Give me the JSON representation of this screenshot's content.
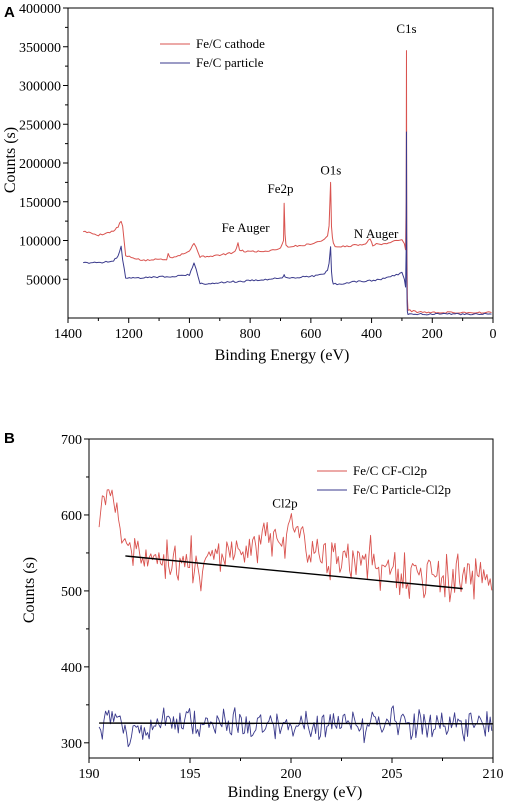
{
  "chart_data": [
    {
      "panel": "A",
      "type": "line",
      "xlabel": "Binding Energy (eV)",
      "ylabel": "Counts (s)",
      "xlim": [
        1400,
        0
      ],
      "ylim": [
        0,
        400000
      ],
      "x_reversed": true,
      "xticks": [
        1400,
        1200,
        1000,
        800,
        600,
        400,
        200,
        0
      ],
      "yticks": [
        50000,
        100000,
        150000,
        200000,
        250000,
        300000,
        350000,
        400000
      ],
      "legend_position": "top-left",
      "series": [
        {
          "name": "Fe/C cathode",
          "color": "#d9534f",
          "x": [
            1350,
            1300,
            1250,
            1235,
            1225,
            1220,
            1210,
            1150,
            1100,
            1075,
            1070,
            1065,
            1050,
            1000,
            985,
            978,
            972,
            965,
            960,
            900,
            850,
            840,
            835,
            820,
            750,
            700,
            690,
            688,
            685,
            682,
            675,
            620,
            560,
            545,
            540,
            535,
            532,
            529,
            526,
            520,
            500,
            450,
            420,
            405,
            400,
            396,
            390,
            350,
            300,
            292,
            288,
            286,
            285,
            284.5,
            284,
            283,
            282,
            280,
            250,
            200,
            150,
            100,
            50,
            5
          ],
          "y": [
            112000,
            107000,
            112000,
            118000,
            125000,
            118000,
            80000,
            74000,
            76000,
            76000,
            84000,
            78000,
            79000,
            86000,
            97000,
            92000,
            86000,
            78000,
            79000,
            81000,
            85000,
            96000,
            88000,
            86000,
            86000,
            90000,
            100000,
            148000,
            108000,
            94000,
            92000,
            94000,
            100000,
            107000,
            118000,
            175000,
            118000,
            104000,
            96000,
            92000,
            92000,
            94000,
            96000,
            102000,
            98000,
            94000,
            95000,
            96000,
            102000,
            96000,
            88000,
            150000,
            345000,
            220000,
            110000,
            60000,
            25000,
            10000,
            8000,
            7000,
            7000,
            7000,
            7000,
            7000
          ]
        },
        {
          "name": "Fe/C particle",
          "color": "#3a3a8c",
          "x": [
            1350,
            1300,
            1250,
            1235,
            1225,
            1220,
            1210,
            1150,
            1100,
            1050,
            1000,
            985,
            978,
            972,
            965,
            960,
            900,
            850,
            800,
            750,
            700,
            690,
            688,
            685,
            682,
            675,
            620,
            560,
            545,
            540,
            535,
            532,
            529,
            526,
            520,
            500,
            450,
            400,
            350,
            300,
            292,
            288,
            286,
            285,
            284.5,
            284,
            283,
            282,
            280,
            250,
            200,
            150,
            100,
            50,
            5
          ],
          "y": [
            72000,
            71000,
            74000,
            80000,
            92000,
            75000,
            52000,
            52000,
            53000,
            54000,
            56000,
            70000,
            64000,
            55000,
            45000,
            44000,
            46000,
            47000,
            48000,
            50000,
            51000,
            54000,
            56000,
            53000,
            52000,
            52000,
            53000,
            56000,
            62000,
            70000,
            92000,
            60000,
            48000,
            44000,
            44000,
            44000,
            47000,
            48000,
            52000,
            58000,
            50000,
            40000,
            90000,
            240000,
            120000,
            50000,
            20000,
            8000,
            5000,
            5000,
            5000,
            5000,
            5000,
            5000,
            5000
          ]
        }
      ],
      "annotations": [
        {
          "text": "C1s",
          "x": 285,
          "y": 368000
        },
        {
          "text": "Fe2p",
          "x": 700,
          "y": 161000
        },
        {
          "text": "O1s",
          "x": 534,
          "y": 185000
        },
        {
          "text": "Fe Auger",
          "x": 815,
          "y": 111000
        },
        {
          "text": "N Auger",
          "x": 385,
          "y": 103000
        }
      ]
    },
    {
      "panel": "B",
      "type": "line",
      "xlabel": "Binding Energy (eV)",
      "ylabel": "Counts (s)",
      "xlim": [
        190,
        210
      ],
      "ylim": [
        280,
        700
      ],
      "x_reversed": false,
      "xticks": [
        190,
        195,
        200,
        205,
        210
      ],
      "yticks": [
        300,
        400,
        500,
        600,
        700
      ],
      "legend_position": "top-right",
      "series": [
        {
          "name": "Fe/C CF-Cl2p",
          "color": "#d9534f",
          "x": [
            190.5,
            190.7,
            191.0,
            191.3,
            191.6,
            192.0,
            192.5,
            193.0,
            193.5,
            194.0,
            194.5,
            195.0,
            195.5,
            196.0,
            196.5,
            197.0,
            197.5,
            198.0,
            198.5,
            199.0,
            199.5,
            200.0,
            200.3,
            200.6,
            201.0,
            201.5,
            202.0,
            202.5,
            203.0,
            203.5,
            204.0,
            204.5,
            205.0,
            205.5,
            206.0,
            206.5,
            207.0,
            207.5,
            208.0,
            208.5,
            209.0,
            209.5,
            210.0
          ],
          "y": [
            600,
            612,
            632,
            598,
            585,
            568,
            552,
            540,
            538,
            545,
            532,
            542,
            528,
            540,
            548,
            552,
            548,
            555,
            560,
            565,
            570,
            578,
            590,
            575,
            565,
            555,
            548,
            545,
            538,
            532,
            530,
            525,
            528,
            524,
            520,
            522,
            518,
            515,
            520,
            518,
            525,
            515,
            512
          ],
          "noise": 22
        },
        {
          "name": "Fe/C Particle-Cl2p",
          "color": "#3a3a8c",
          "x": [
            190.5,
            191.0,
            192.0,
            193.0,
            194.0,
            195.0,
            196.0,
            197.0,
            198.0,
            199.0,
            200.0,
            201.0,
            202.0,
            203.0,
            204.0,
            205.0,
            206.0,
            207.0,
            208.0,
            209.0,
            210.0
          ],
          "y": [
            325,
            330,
            322,
            326,
            324,
            325,
            323,
            326,
            324,
            325,
            327,
            323,
            325,
            326,
            324,
            325,
            324,
            326,
            323,
            325,
            326
          ],
          "noise": 16
        }
      ],
      "baselines": [
        {
          "x": [
            191.8,
            208.5
          ],
          "y": [
            546,
            503
          ]
        },
        {
          "x": [
            190.5,
            210.0
          ],
          "y": [
            326,
            325
          ]
        }
      ],
      "annotations": [
        {
          "text": "Cl2p",
          "x": 199.7,
          "y": 610
        }
      ]
    }
  ]
}
